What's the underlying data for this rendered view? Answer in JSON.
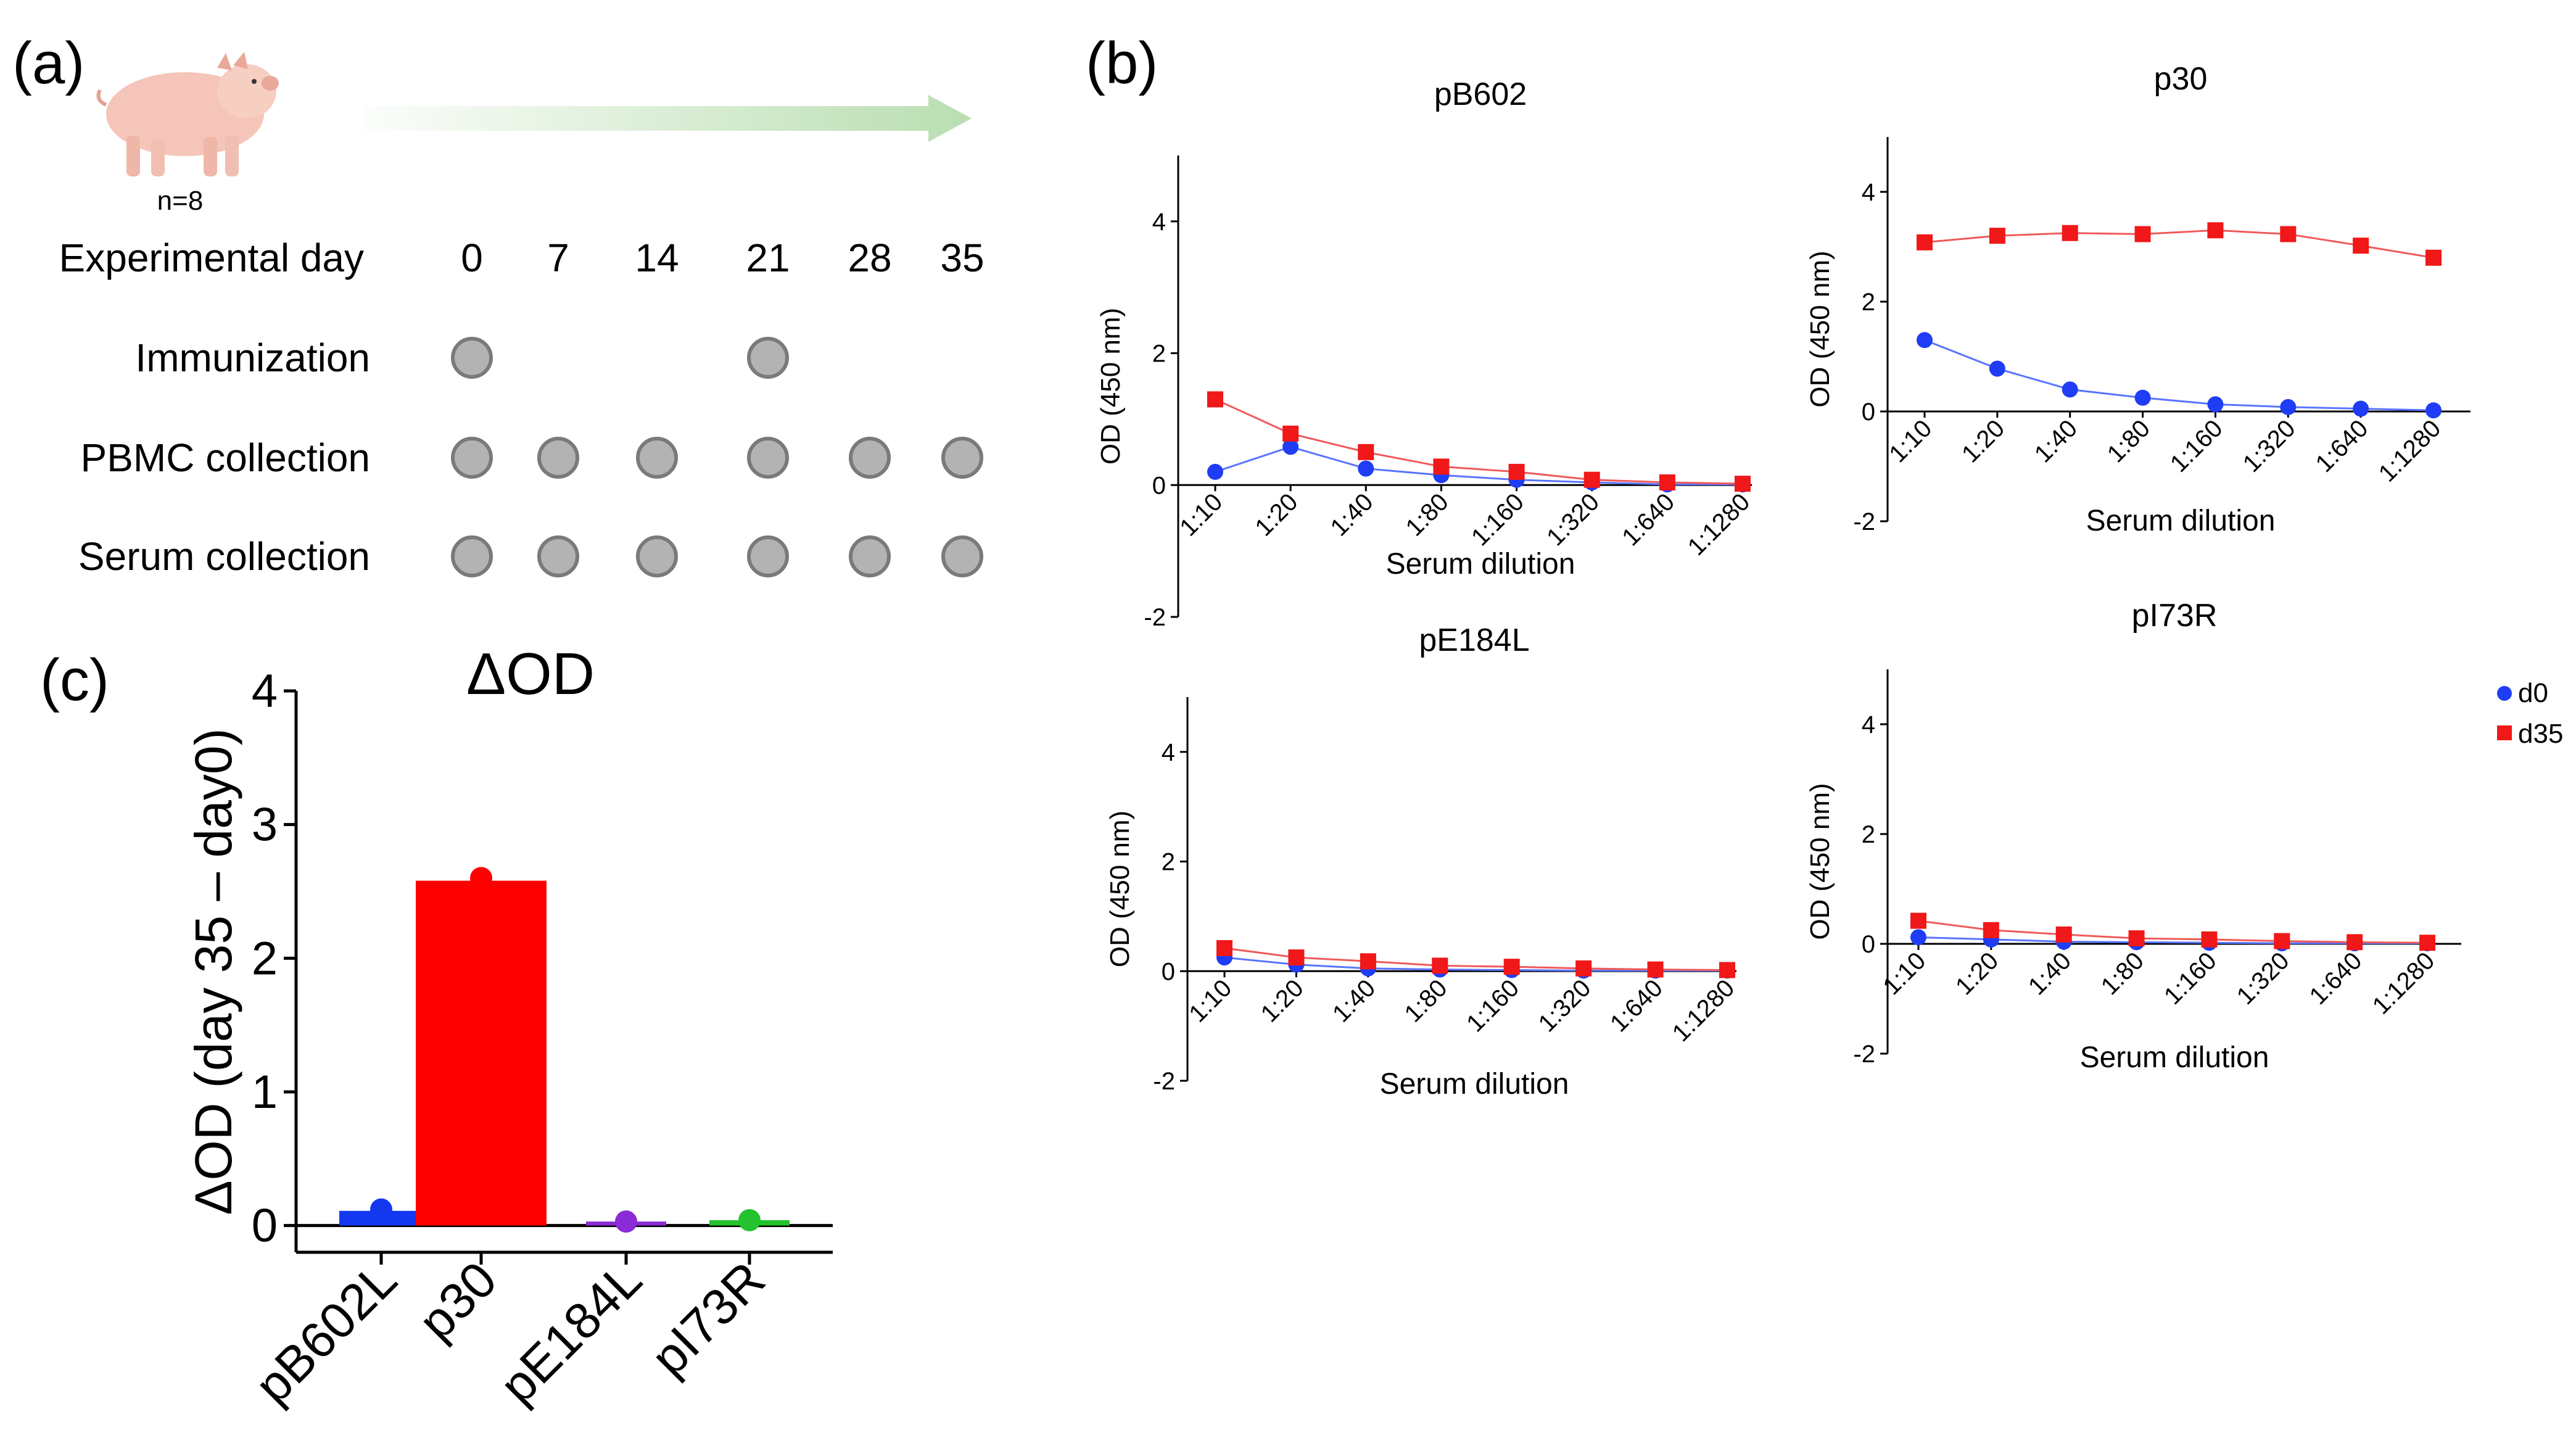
{
  "panel_labels": {
    "a": "(a)",
    "b": "(b)",
    "c": "(c)"
  },
  "timeline": {
    "n_label": "n=8",
    "day_label": "Experimental day",
    "days": [
      "0",
      "7",
      "14",
      "21",
      "28",
      "35"
    ],
    "rows": [
      {
        "label": "Immunization",
        "marks": [
          true,
          false,
          false,
          true,
          false,
          false
        ]
      },
      {
        "label": "PBMC collection",
        "marks": [
          true,
          true,
          true,
          true,
          true,
          true
        ]
      },
      {
        "label": "Serum collection",
        "marks": [
          true,
          true,
          true,
          true,
          true,
          true
        ]
      }
    ],
    "colors": {
      "marker_fill": "#b3b3b3",
      "marker_stroke": "#7a7a7a",
      "arrow": "#b9deb1"
    }
  },
  "legend": {
    "d0": "d0",
    "d35": "d35"
  },
  "colors": {
    "d0": "#1f3df5",
    "d35": "#f01818",
    "d0_line": "#5a74ff",
    "d35_line": "#f05a5a"
  },
  "chart_data": [
    {
      "type": "line",
      "title": "pB602",
      "xlabel": "Serum dilution",
      "ylabel": "OD (450 nm)",
      "categories": [
        "1:10",
        "1:20",
        "1:40",
        "1:80",
        "1:160",
        "1:320",
        "1:640",
        "1:1280"
      ],
      "ylim": [
        -2,
        5
      ],
      "yticks": [
        "-2",
        "0",
        "2",
        "4"
      ],
      "series": [
        {
          "name": "d0",
          "values": [
            0.2,
            0.58,
            0.25,
            0.15,
            0.08,
            0.04,
            0.01,
            0.01
          ]
        },
        {
          "name": "d35",
          "values": [
            1.3,
            0.78,
            0.5,
            0.28,
            0.2,
            0.08,
            0.04,
            0.02
          ]
        }
      ]
    },
    {
      "type": "line",
      "title": "p30",
      "xlabel": "Serum dilution",
      "ylabel": "OD (450 nm)",
      "categories": [
        "1:10",
        "1:20",
        "1:40",
        "1:80",
        "1:160",
        "1:320",
        "1:640",
        "1:1280"
      ],
      "ylim": [
        -2,
        5
      ],
      "yticks": [
        "-2",
        "0",
        "2",
        "4"
      ],
      "series": [
        {
          "name": "d0",
          "values": [
            1.3,
            0.78,
            0.4,
            0.25,
            0.13,
            0.08,
            0.05,
            0.02
          ]
        },
        {
          "name": "d35",
          "values": [
            3.08,
            3.2,
            3.25,
            3.23,
            3.3,
            3.23,
            3.02,
            2.8
          ]
        }
      ]
    },
    {
      "type": "line",
      "title": "pE184L",
      "xlabel": "Serum dilution",
      "ylabel": "OD (450 nm)",
      "categories": [
        "1:10",
        "1:20",
        "1:40",
        "1:80",
        "1:160",
        "1:320",
        "1:640",
        "1:1280"
      ],
      "ylim": [
        -2,
        5
      ],
      "yticks": [
        "-2",
        "0",
        "2",
        "4"
      ],
      "series": [
        {
          "name": "d0",
          "values": [
            0.25,
            0.12,
            0.05,
            0.03,
            0.02,
            0.01,
            0.01,
            0.01
          ]
        },
        {
          "name": "d35",
          "values": [
            0.42,
            0.25,
            0.18,
            0.1,
            0.08,
            0.05,
            0.03,
            0.02
          ]
        }
      ]
    },
    {
      "type": "line",
      "title": "pI73R",
      "xlabel": "Serum dilution",
      "ylabel": "OD (450 nm)",
      "categories": [
        "1:10",
        "1:20",
        "1:40",
        "1:80",
        "1:160",
        "1:320",
        "1:640",
        "1:1280"
      ],
      "ylim": [
        -2,
        5
      ],
      "yticks": [
        "-2",
        "0",
        "2",
        "4"
      ],
      "series": [
        {
          "name": "d0",
          "values": [
            0.12,
            0.08,
            0.04,
            0.03,
            0.02,
            0.01,
            0.01,
            0.01
          ]
        },
        {
          "name": "d35",
          "values": [
            0.42,
            0.25,
            0.17,
            0.1,
            0.08,
            0.05,
            0.03,
            0.02
          ]
        }
      ]
    },
    {
      "type": "bar",
      "title": "ΔOD",
      "ylabel": "ΔOD (day 35 – day0)",
      "categories": [
        "pB602L",
        "p30",
        "pE184L",
        "pI73R"
      ],
      "values": [
        0.11,
        2.58,
        0.03,
        0.04
      ],
      "points": [
        0.12,
        2.6,
        0.03,
        0.04
      ],
      "colors": [
        "#1438f0",
        "#ff0000",
        "#8a2bd6",
        "#22c32c"
      ],
      "ylim": [
        -0.2,
        4
      ],
      "yticks": [
        "0",
        "1",
        "2",
        "3",
        "4"
      ]
    }
  ]
}
